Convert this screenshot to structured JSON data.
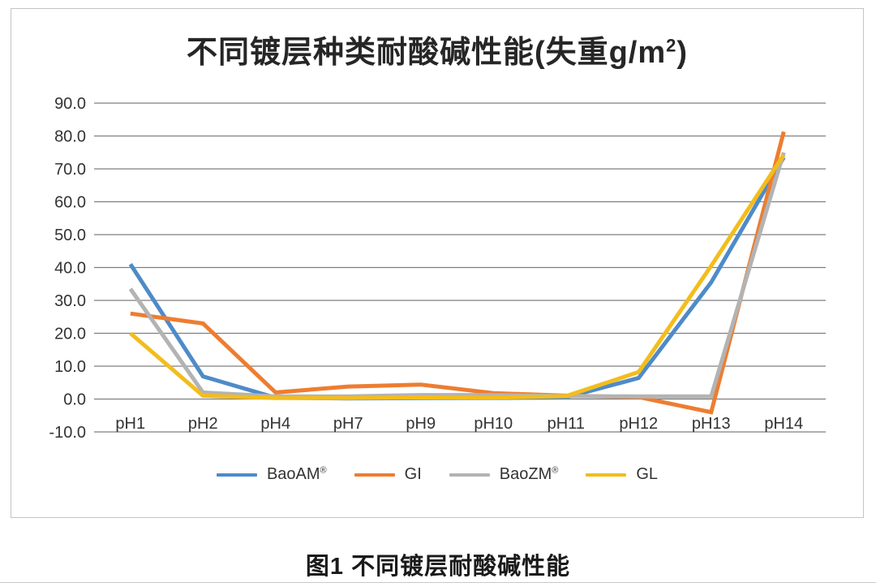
{
  "chart": {
    "title_prefix": "不同镀层种类耐酸碱性能(失重g/m",
    "title_sup": "2",
    "title_suffix": ")"
  },
  "caption": "图1 不同镀层耐酸碱性能",
  "colors": {
    "gridline": "#7f7f7f",
    "axis_text": "#333333",
    "frame_border": "#c4c4c4"
  },
  "chart_data": {
    "type": "line",
    "title": "不同镀层种类耐酸碱性能(失重g/m²)",
    "xlabel": "",
    "ylabel": "",
    "categories": [
      "pH1",
      "pH2",
      "pH4",
      "pH7",
      "pH9",
      "pH10",
      "pH11",
      "pH12",
      "pH13",
      "pH14"
    ],
    "series": [
      {
        "name": "BaoAM",
        "mark": "®",
        "color": "#4E8BC8",
        "values": [
          41.0,
          6.9,
          0.4,
          0.2,
          0.3,
          0.3,
          0.5,
          6.4,
          35.5,
          73.5
        ]
      },
      {
        "name": "GI",
        "mark": "",
        "color": "#ED7D31",
        "values": [
          26.0,
          23.0,
          2.0,
          3.8,
          4.4,
          1.8,
          1.0,
          0.6,
          -4.0,
          81.3
        ]
      },
      {
        "name": "BaoZM",
        "mark": "®",
        "color": "#B3B3B3",
        "values": [
          33.5,
          2.0,
          0.8,
          0.8,
          1.2,
          1.2,
          0.9,
          0.8,
          0.8,
          75.0
        ]
      },
      {
        "name": "GL",
        "mark": "",
        "color": "#F2BD1D",
        "values": [
          20.0,
          1.0,
          0.3,
          0.3,
          0.5,
          0.4,
          0.9,
          8.2,
          40.5,
          74.3
        ]
      }
    ],
    "ylim": [
      -10,
      90
    ],
    "ytick_step": 10,
    "ytick_labels": [
      "-10.0",
      "0.0",
      "10.0",
      "20.0",
      "30.0",
      "40.0",
      "50.0",
      "60.0",
      "70.0",
      "80.0",
      "90.0"
    ],
    "grid": true,
    "legend_position": "bottom"
  }
}
